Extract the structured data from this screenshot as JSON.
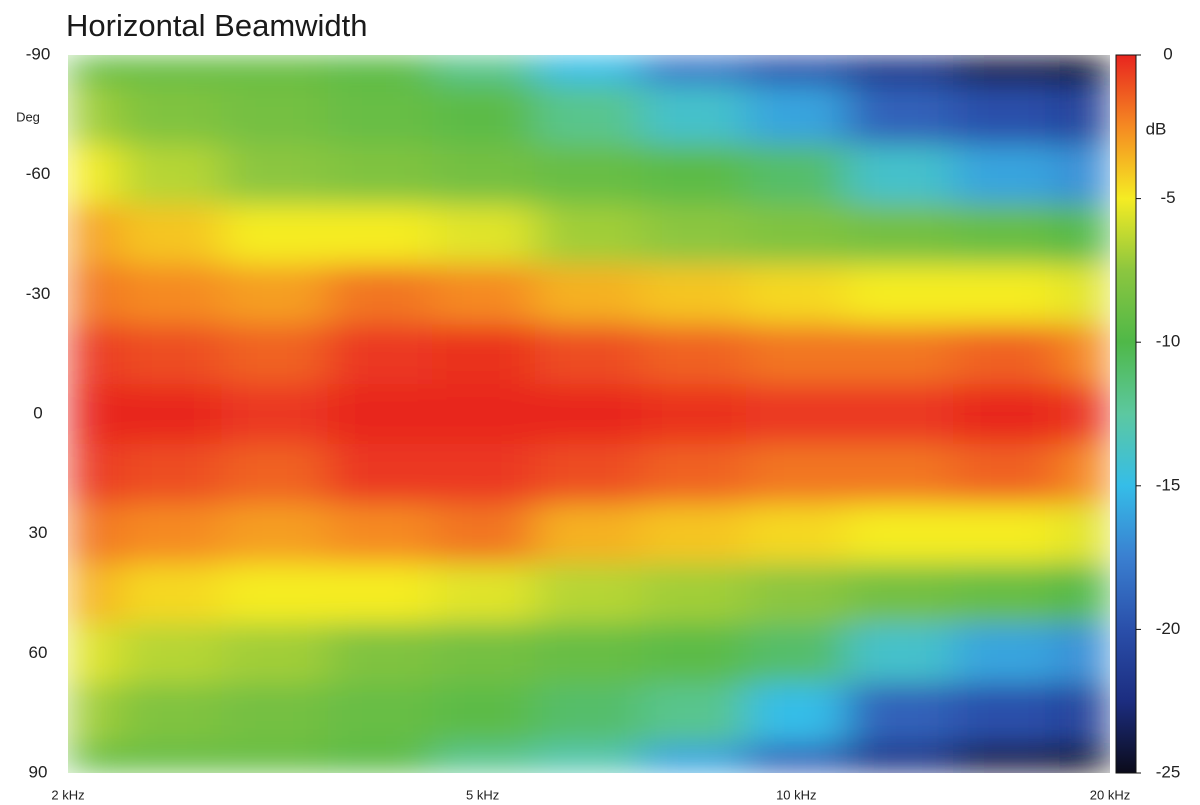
{
  "chart_data": {
    "type": "heatmap",
    "title": "Horizontal Beamwidth",
    "y_label": "Deg",
    "x": [
      2000,
      2500,
      3150,
      4000,
      5000,
      6300,
      8000,
      10000,
      12500,
      16000,
      20000
    ],
    "y": [
      -90,
      -75,
      -60,
      -45,
      -30,
      -15,
      0,
      15,
      30,
      45,
      60,
      75,
      90
    ],
    "values": [
      [
        -9,
        -9,
        -9,
        -9.5,
        -12,
        -15,
        -18,
        -20,
        -22,
        -24,
        -25
      ],
      [
        -7,
        -8,
        -8.5,
        -9,
        -9.5,
        -12,
        -14,
        -16,
        -19,
        -20,
        -21
      ],
      [
        -5,
        -6.5,
        -7.5,
        -8,
        -8.5,
        -9,
        -9.5,
        -11,
        -14,
        -16,
        -17
      ],
      [
        -3,
        -4,
        -5,
        -5,
        -5.5,
        -7,
        -7.5,
        -8,
        -8.5,
        -9,
        -10
      ],
      [
        -2,
        -2.5,
        -3,
        -2,
        -2.5,
        -3.5,
        -4,
        -4.5,
        -5,
        -5,
        -5.5
      ],
      [
        -0.5,
        -1,
        -1.5,
        -0.5,
        -0.3,
        -1,
        -1.5,
        -2,
        -2,
        -1.5,
        -2.5
      ],
      [
        0,
        0,
        -0.5,
        0,
        0,
        0,
        -0.3,
        -0.5,
        -0.5,
        0,
        -0.5
      ],
      [
        -0.5,
        -1,
        -1.5,
        -0.5,
        -0.5,
        -1,
        -1.5,
        -2,
        -2,
        -1.5,
        -2.5
      ],
      [
        -2,
        -2.5,
        -3,
        -2.5,
        -2,
        -3.5,
        -4,
        -4.5,
        -5,
        -5,
        -5.5
      ],
      [
        -3.5,
        -4.5,
        -5,
        -5,
        -5.5,
        -6.5,
        -7,
        -7.5,
        -8.5,
        -9,
        -10
      ],
      [
        -5.5,
        -6.5,
        -7,
        -8,
        -8.5,
        -9,
        -9.5,
        -11,
        -14,
        -16,
        -17
      ],
      [
        -7,
        -8,
        -8.5,
        -9,
        -9.5,
        -11,
        -12,
        -15,
        -19,
        -20,
        -21
      ],
      [
        -9,
        -9,
        -9,
        -9.5,
        -12,
        -13,
        -16,
        -19,
        -22,
        -24,
        -25
      ]
    ],
    "x_scale": "log",
    "xlim": [
      2000,
      20000
    ],
    "xticks": [
      {
        "value": 2000,
        "label": "2 kHz"
      },
      {
        "value": 5000,
        "label": "5 kHz"
      },
      {
        "value": 10000,
        "label": "10 kHz"
      },
      {
        "value": 20000,
        "label": "20 kHz"
      }
    ],
    "ylim": [
      -90,
      90
    ],
    "y_inverted": true,
    "yticks": [
      -90,
      -60,
      -30,
      0,
      30,
      60,
      90
    ],
    "colorbar": {
      "label": "dB",
      "lim": [
        -25,
        0
      ],
      "ticks": [
        0,
        -5,
        -10,
        -15,
        -20,
        -25
      ]
    },
    "colormap": [
      "#0b0b1a",
      "#1c2d80",
      "#2a4faa",
      "#3a7fd0",
      "#35bde8",
      "#5cc8a0",
      "#4fb848",
      "#8cc63f",
      "#f5ec23",
      "#f58a22",
      "#e8251f"
    ]
  }
}
